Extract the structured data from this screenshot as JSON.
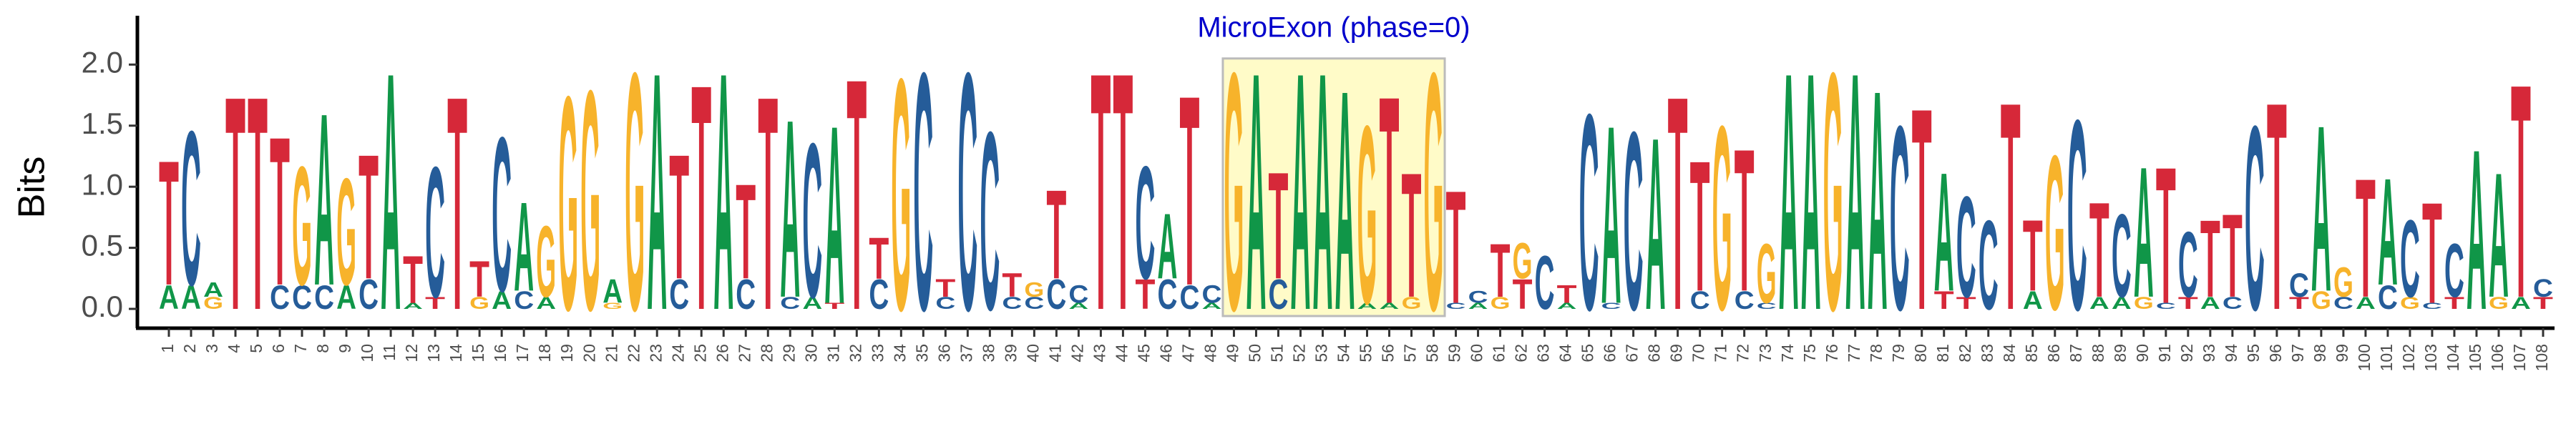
{
  "chart_data": {
    "type": "sequence_logo",
    "ylabel": "Bits",
    "ylim": [
      0,
      2.4
    ],
    "yticks": [
      {
        "value": 0,
        "label": "0.0"
      },
      {
        "value": 0.5,
        "label": "0.5"
      },
      {
        "value": 1,
        "label": "1.0"
      },
      {
        "value": 1.5,
        "label": "1.5"
      },
      {
        "value": 2,
        "label": "2.0"
      }
    ],
    "x": [
      1,
      2,
      3,
      4,
      5,
      6,
      7,
      8,
      9,
      10,
      11,
      12,
      13,
      14,
      15,
      16,
      17,
      18,
      19,
      20,
      21,
      22,
      23,
      24,
      25,
      26,
      27,
      28,
      29,
      30,
      31,
      32,
      33,
      34,
      35,
      36,
      37,
      38,
      39,
      40,
      41,
      42,
      43,
      44,
      45,
      46,
      47,
      48,
      49,
      50,
      51,
      52,
      53,
      54,
      55,
      56,
      57,
      58,
      59,
      60,
      61,
      62,
      63,
      64,
      65,
      66,
      67,
      68,
      69,
      70,
      71,
      72,
      73,
      74,
      75,
      76,
      77,
      78,
      79,
      80,
      81,
      82,
      83,
      84,
      85,
      86,
      87,
      88,
      89,
      90,
      91,
      92,
      93,
      94,
      95,
      96,
      97,
      98,
      99,
      100,
      101,
      102,
      103,
      104,
      105,
      106,
      107,
      108
    ],
    "annotation": {
      "text": "MicroExon (phase=0)",
      "start": 49,
      "end": 58,
      "color": "#0000cc",
      "fill": "#fffbc8",
      "stroke": "#bbbbbb"
    },
    "series": [
      {
        "name": "A",
        "color": "#109648",
        "values": [
          0.2,
          0.2,
          0.12,
          0,
          0,
          0,
          0,
          1.45,
          0.2,
          0,
          2.0,
          0.05,
          0,
          0,
          0,
          0.15,
          0.75,
          0.1,
          0,
          0,
          0.2,
          0,
          2.0,
          0,
          0,
          2.0,
          0,
          0,
          1.5,
          0.1,
          1.5,
          0,
          0,
          0,
          0,
          0,
          0,
          0,
          0,
          0,
          0,
          0.05,
          0,
          0,
          0,
          0.55,
          0,
          0.05,
          0,
          2.0,
          0,
          2.0,
          2.0,
          1.85,
          0.05,
          0.05,
          0,
          0,
          0,
          0.05,
          0,
          0,
          0,
          0.05,
          0,
          1.5,
          0,
          1.45,
          0,
          0,
          0,
          0,
          0,
          2.0,
          2.0,
          0,
          2.0,
          1.85,
          0,
          0,
          1.0,
          0,
          0,
          0,
          0.15,
          0,
          0,
          0.1,
          0.1,
          1.1,
          0,
          0,
          0.1,
          0,
          0,
          0,
          0,
          1.4,
          0,
          0.1,
          0.9,
          0,
          0,
          0,
          1.35,
          1.05,
          0.1,
          0
        ]
      },
      {
        "name": "C",
        "color": "#255c99",
        "values": [
          0,
          1.3,
          0,
          0,
          0,
          0.2,
          0.2,
          0.2,
          0,
          0.25,
          0,
          0,
          1.1,
          0,
          0,
          1.3,
          0.15,
          0,
          0,
          0,
          0,
          0,
          0,
          0.25,
          0,
          0,
          0.25,
          0,
          0.1,
          1.3,
          0,
          0,
          0.25,
          0,
          2.0,
          0.1,
          2.0,
          1.5,
          0.1,
          0.1,
          0.25,
          0.15,
          0,
          0,
          0.95,
          0.25,
          0.2,
          0.15,
          0,
          0,
          0.25,
          0,
          0,
          0,
          0,
          0,
          0,
          0,
          0.05,
          0.1,
          0,
          0,
          0.45,
          0,
          1.65,
          0.05,
          1.5,
          0,
          0,
          0.15,
          0,
          0.15,
          0.05,
          0,
          0,
          0,
          0,
          0,
          1.55,
          0,
          0,
          0.85,
          0.75,
          0,
          0,
          0,
          1.6,
          0,
          0.7,
          0,
          0.05,
          0.55,
          0,
          0.1,
          1.55,
          0,
          0.2,
          0,
          0.1,
          0,
          0.2,
          0.65,
          0.05,
          0.45,
          0,
          0,
          0,
          0.15
        ]
      },
      {
        "name": "G",
        "color": "#f7b32b",
        "values": [
          0,
          0,
          0.1,
          0,
          0,
          0,
          1.0,
          0,
          0.9,
          0,
          0,
          0,
          0,
          0,
          0.1,
          0,
          0,
          0.6,
          1.8,
          1.85,
          0.05,
          2.0,
          0,
          0,
          0,
          0,
          0,
          0,
          0,
          0,
          0,
          0,
          0,
          1.95,
          0,
          0,
          0,
          0,
          0,
          0.12,
          0,
          0,
          0,
          0,
          0,
          0,
          0,
          0,
          2.0,
          0,
          0,
          0,
          0,
          0,
          1.5,
          0,
          0.1,
          2.0,
          0,
          0,
          0.1,
          0.3,
          0,
          0,
          0,
          0,
          0,
          0,
          0,
          0,
          1.55,
          0,
          0.5,
          0,
          0,
          2.0,
          0,
          0,
          0,
          0,
          0,
          0,
          0,
          0,
          0,
          1.3,
          0,
          0,
          0,
          0.1,
          0,
          0,
          0,
          0,
          0,
          0,
          0,
          0.15,
          0.25,
          0,
          0,
          0.1,
          0,
          0,
          0,
          0.1,
          0,
          0
        ]
      },
      {
        "name": "T",
        "color": "#d62839",
        "values": [
          1.05,
          0,
          0,
          1.8,
          1.8,
          1.25,
          0,
          0,
          0,
          1.05,
          0,
          0.4,
          0.1,
          1.8,
          0.3,
          0,
          0,
          0,
          0,
          0,
          0,
          0,
          0,
          1.05,
          1.9,
          0,
          0.8,
          1.8,
          0,
          0,
          0.05,
          1.95,
          0.35,
          0,
          0,
          0.15,
          0,
          0,
          0.2,
          0,
          0.75,
          0,
          2.0,
          2.0,
          0.25,
          0,
          1.6,
          0,
          0,
          0,
          0.9,
          0,
          0,
          0,
          0,
          1.75,
          1.05,
          0,
          0.95,
          0,
          0.45,
          0.25,
          0,
          0.15,
          0,
          0,
          0,
          0,
          1.8,
          1.1,
          0,
          1.2,
          0,
          0,
          0,
          0,
          0,
          0,
          0,
          1.7,
          0.15,
          0.1,
          0,
          1.75,
          0.6,
          0,
          0,
          0.8,
          0,
          0,
          1.15,
          0.1,
          0.65,
          0.7,
          0,
          1.75,
          0.1,
          0,
          0,
          1.0,
          0,
          0,
          0.85,
          0.1,
          0,
          0,
          1.8,
          0.1
        ]
      }
    ]
  }
}
